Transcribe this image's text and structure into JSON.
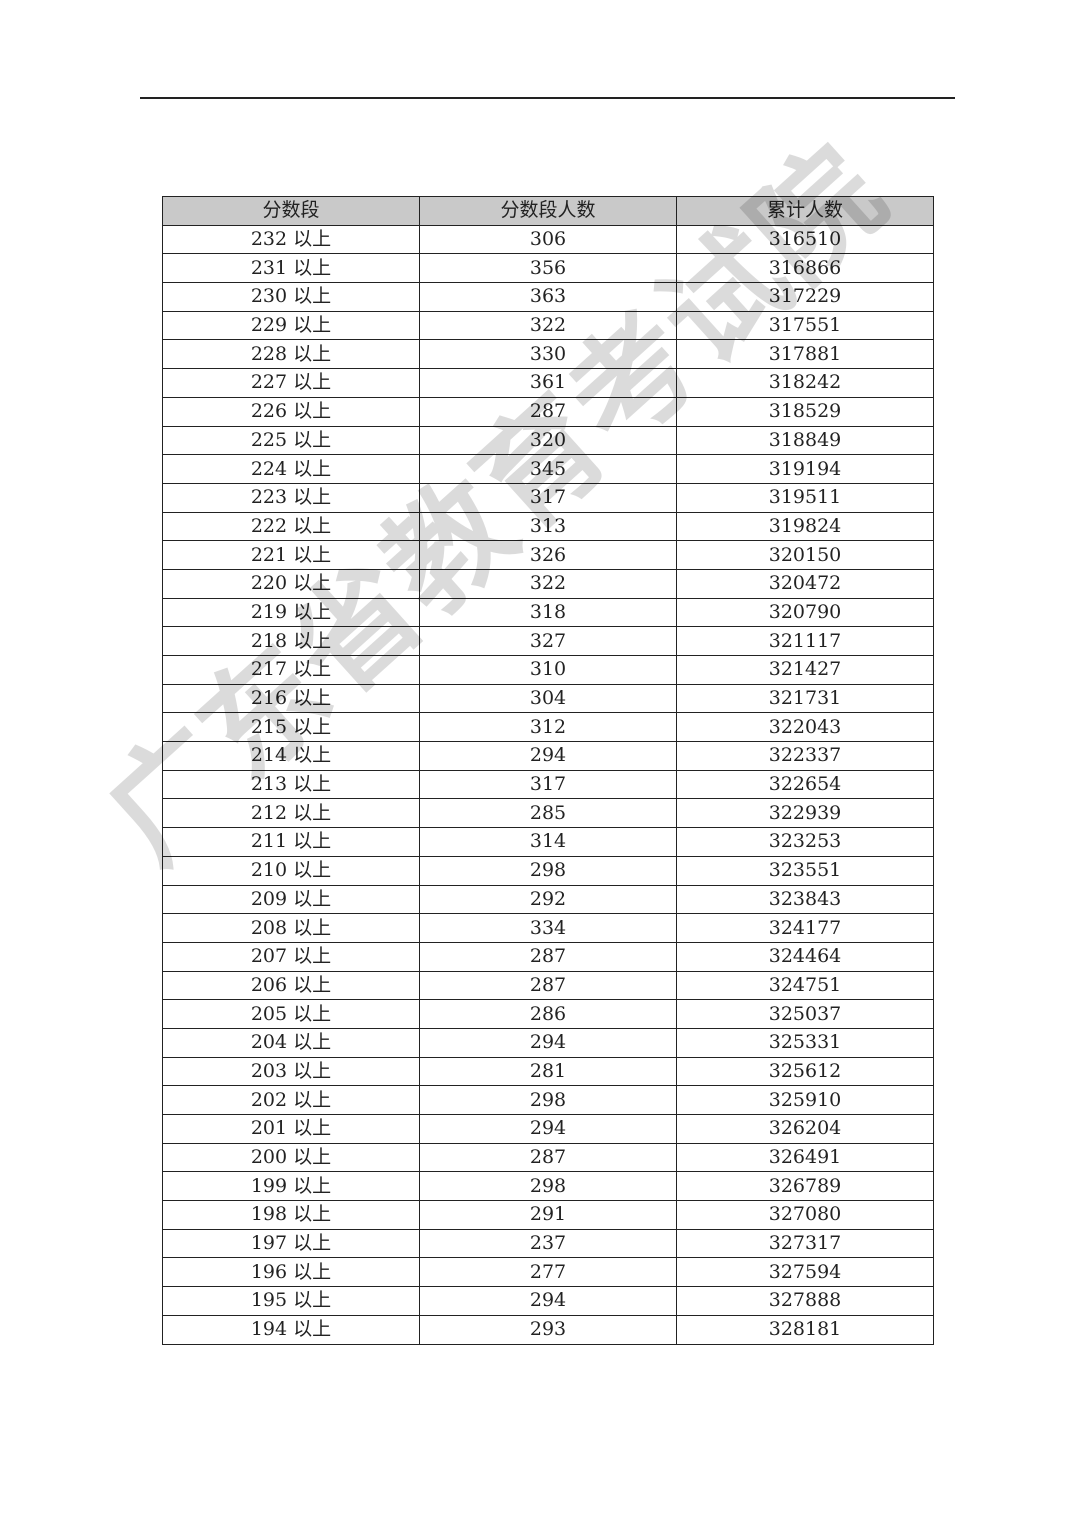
{
  "watermark": "广东省教育考试院",
  "table": {
    "headers": [
      "分数段",
      "分数段人数",
      "累计人数"
    ],
    "rows": [
      [
        "232 以上",
        "306",
        "316510"
      ],
      [
        "231 以上",
        "356",
        "316866"
      ],
      [
        "230 以上",
        "363",
        "317229"
      ],
      [
        "229 以上",
        "322",
        "317551"
      ],
      [
        "228 以上",
        "330",
        "317881"
      ],
      [
        "227 以上",
        "361",
        "318242"
      ],
      [
        "226 以上",
        "287",
        "318529"
      ],
      [
        "225 以上",
        "320",
        "318849"
      ],
      [
        "224 以上",
        "345",
        "319194"
      ],
      [
        "223 以上",
        "317",
        "319511"
      ],
      [
        "222 以上",
        "313",
        "319824"
      ],
      [
        "221 以上",
        "326",
        "320150"
      ],
      [
        "220 以上",
        "322",
        "320472"
      ],
      [
        "219 以上",
        "318",
        "320790"
      ],
      [
        "218 以上",
        "327",
        "321117"
      ],
      [
        "217 以上",
        "310",
        "321427"
      ],
      [
        "216 以上",
        "304",
        "321731"
      ],
      [
        "215 以上",
        "312",
        "322043"
      ],
      [
        "214 以上",
        "294",
        "322337"
      ],
      [
        "213 以上",
        "317",
        "322654"
      ],
      [
        "212 以上",
        "285",
        "322939"
      ],
      [
        "211 以上",
        "314",
        "323253"
      ],
      [
        "210 以上",
        "298",
        "323551"
      ],
      [
        "209 以上",
        "292",
        "323843"
      ],
      [
        "208 以上",
        "334",
        "324177"
      ],
      [
        "207 以上",
        "287",
        "324464"
      ],
      [
        "206 以上",
        "287",
        "324751"
      ],
      [
        "205 以上",
        "286",
        "325037"
      ],
      [
        "204 以上",
        "294",
        "325331"
      ],
      [
        "203 以上",
        "281",
        "325612"
      ],
      [
        "202 以上",
        "298",
        "325910"
      ],
      [
        "201 以上",
        "294",
        "326204"
      ],
      [
        "200 以上",
        "287",
        "326491"
      ],
      [
        "199 以上",
        "298",
        "326789"
      ],
      [
        "198 以上",
        "291",
        "327080"
      ],
      [
        "197 以上",
        "237",
        "327317"
      ],
      [
        "196 以上",
        "277",
        "327594"
      ],
      [
        "195 以上",
        "294",
        "327888"
      ],
      [
        "194 以上",
        "293",
        "328181"
      ]
    ]
  }
}
